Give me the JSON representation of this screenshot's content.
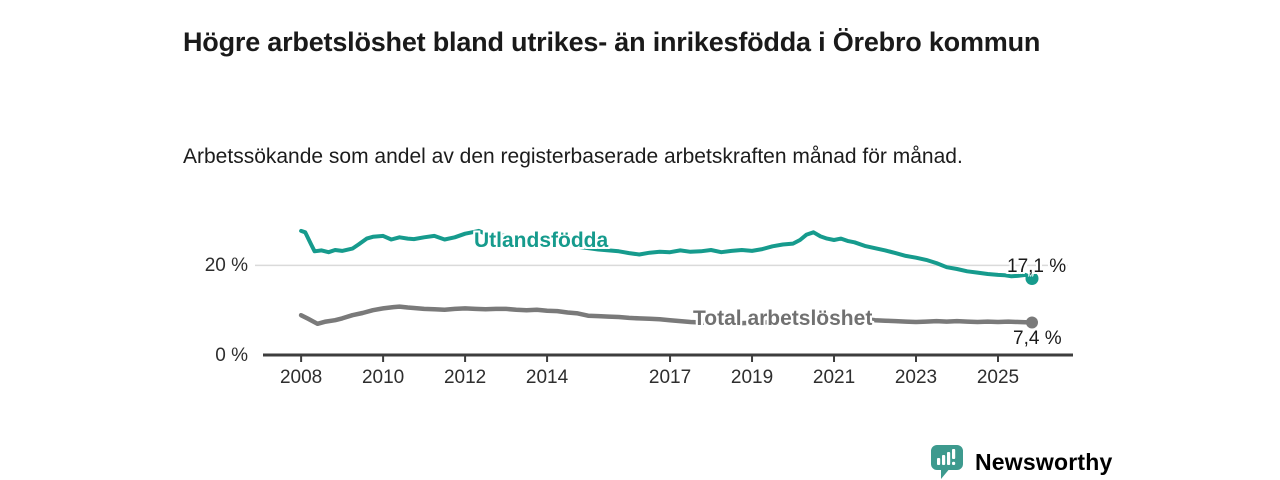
{
  "header": {
    "title": "Högre arbetslöshet bland utrikes- än inrikesfödda i Örebro kommun",
    "subtitle": "Arbetssökande som andel av den registerbaserade arbetskraften månad för månad."
  },
  "chart_data": {
    "type": "line",
    "title": "Högre arbetslöshet bland utrikes- än inrikesfödda i Örebro kommun",
    "subtitle": "Arbetssökande som andel av den registerbaserade arbetskraften månad för månad.",
    "xlabel": "",
    "ylabel": "%",
    "x_domain": [
      2007.07,
      2026.83
    ],
    "y_domain": [
      0,
      32
    ],
    "grid": "single horizontal gridline at y=20",
    "legend_position": "inline-labels-on-lines",
    "x_ticks": [
      {
        "value": 2008,
        "label": "2008"
      },
      {
        "value": 2010,
        "label": "2010"
      },
      {
        "value": 2012,
        "label": "2012"
      },
      {
        "value": 2014,
        "label": "2014"
      },
      {
        "value": 2017,
        "label": "2017"
      },
      {
        "value": 2019,
        "label": "2019"
      },
      {
        "value": 2021,
        "label": "2021"
      },
      {
        "value": 2023,
        "label": "2023"
      },
      {
        "value": 2025,
        "label": "2025"
      }
    ],
    "y_ticks": [
      {
        "value": 0,
        "label": "0 %"
      },
      {
        "value": 20,
        "label": "20 %"
      }
    ],
    "series": [
      {
        "name": "Utlandsfödda",
        "color": "#169b8d",
        "end_label": "17,1 %",
        "last_value": 17.1,
        "line_width": 4,
        "points": [
          [
            2008.0,
            27.6
          ],
          [
            2008.1,
            27.3
          ],
          [
            2008.25,
            24.5
          ],
          [
            2008.33,
            23.1
          ],
          [
            2008.5,
            23.3
          ],
          [
            2008.67,
            22.9
          ],
          [
            2008.83,
            23.4
          ],
          [
            2009.0,
            23.2
          ],
          [
            2009.25,
            23.7
          ],
          [
            2009.4,
            24.6
          ],
          [
            2009.6,
            25.9
          ],
          [
            2009.75,
            26.3
          ],
          [
            2010.0,
            26.5
          ],
          [
            2010.2,
            25.7
          ],
          [
            2010.4,
            26.2
          ],
          [
            2010.6,
            25.9
          ],
          [
            2010.75,
            25.8
          ],
          [
            2011.0,
            26.2
          ],
          [
            2011.25,
            26.5
          ],
          [
            2011.5,
            25.7
          ],
          [
            2011.75,
            26.2
          ],
          [
            2012.0,
            27.0
          ],
          [
            2012.17,
            27.3
          ],
          [
            2012.33,
            27.6
          ],
          [
            2012.5,
            27.0
          ],
          [
            2012.75,
            26.7
          ],
          [
            2013.0,
            26.5
          ],
          [
            2013.25,
            26.2
          ],
          [
            2013.5,
            25.9
          ],
          [
            2013.75,
            25.6
          ],
          [
            2014.0,
            25.2
          ],
          [
            2014.25,
            24.9
          ],
          [
            2014.5,
            24.5
          ],
          [
            2014.75,
            24.1
          ],
          [
            2015.0,
            23.8
          ],
          [
            2015.25,
            23.5
          ],
          [
            2015.5,
            23.3
          ],
          [
            2015.75,
            23.1
          ],
          [
            2016.0,
            22.7
          ],
          [
            2016.25,
            22.4
          ],
          [
            2016.5,
            22.8
          ],
          [
            2016.75,
            23.0
          ],
          [
            2017.0,
            22.9
          ],
          [
            2017.25,
            23.3
          ],
          [
            2017.5,
            23.0
          ],
          [
            2017.75,
            23.1
          ],
          [
            2018.0,
            23.4
          ],
          [
            2018.25,
            22.9
          ],
          [
            2018.5,
            23.2
          ],
          [
            2018.75,
            23.4
          ],
          [
            2019.0,
            23.2
          ],
          [
            2019.25,
            23.6
          ],
          [
            2019.5,
            24.2
          ],
          [
            2019.75,
            24.6
          ],
          [
            2020.0,
            24.8
          ],
          [
            2020.17,
            25.6
          ],
          [
            2020.33,
            26.8
          ],
          [
            2020.5,
            27.3
          ],
          [
            2020.67,
            26.4
          ],
          [
            2020.83,
            25.9
          ],
          [
            2021.0,
            25.6
          ],
          [
            2021.17,
            25.9
          ],
          [
            2021.33,
            25.4
          ],
          [
            2021.5,
            25.1
          ],
          [
            2021.75,
            24.3
          ],
          [
            2022.0,
            23.8
          ],
          [
            2022.25,
            23.3
          ],
          [
            2022.5,
            22.7
          ],
          [
            2022.75,
            22.1
          ],
          [
            2023.0,
            21.7
          ],
          [
            2023.25,
            21.2
          ],
          [
            2023.5,
            20.5
          ],
          [
            2023.75,
            19.6
          ],
          [
            2024.0,
            19.2
          ],
          [
            2024.25,
            18.7
          ],
          [
            2024.5,
            18.4
          ],
          [
            2024.75,
            18.1
          ],
          [
            2025.0,
            17.9
          ],
          [
            2025.17,
            17.8
          ],
          [
            2025.33,
            17.6
          ],
          [
            2025.5,
            17.7
          ],
          [
            2025.67,
            17.9
          ],
          [
            2025.83,
            17.1
          ]
        ]
      },
      {
        "name": "Total arbetslöshet",
        "color": "#7a7a7a",
        "end_label": "7,4 %",
        "last_value": 7.4,
        "line_width": 4.5,
        "points": [
          [
            2008.0,
            9.0
          ],
          [
            2008.17,
            8.2
          ],
          [
            2008.4,
            7.1
          ],
          [
            2008.6,
            7.6
          ],
          [
            2008.83,
            7.9
          ],
          [
            2009.0,
            8.3
          ],
          [
            2009.25,
            9.0
          ],
          [
            2009.5,
            9.5
          ],
          [
            2009.75,
            10.1
          ],
          [
            2010.0,
            10.5
          ],
          [
            2010.25,
            10.8
          ],
          [
            2010.4,
            10.9
          ],
          [
            2010.6,
            10.7
          ],
          [
            2010.75,
            10.6
          ],
          [
            2011.0,
            10.4
          ],
          [
            2011.25,
            10.3
          ],
          [
            2011.5,
            10.2
          ],
          [
            2011.75,
            10.4
          ],
          [
            2012.0,
            10.5
          ],
          [
            2012.25,
            10.4
          ],
          [
            2012.5,
            10.3
          ],
          [
            2012.75,
            10.4
          ],
          [
            2013.0,
            10.4
          ],
          [
            2013.25,
            10.2
          ],
          [
            2013.5,
            10.1
          ],
          [
            2013.75,
            10.2
          ],
          [
            2014.0,
            10.0
          ],
          [
            2014.25,
            9.9
          ],
          [
            2014.5,
            9.6
          ],
          [
            2014.75,
            9.4
          ],
          [
            2015.0,
            8.9
          ],
          [
            2015.25,
            8.8
          ],
          [
            2015.5,
            8.7
          ],
          [
            2015.75,
            8.6
          ],
          [
            2016.0,
            8.4
          ],
          [
            2016.25,
            8.3
          ],
          [
            2016.5,
            8.2
          ],
          [
            2016.75,
            8.1
          ],
          [
            2017.0,
            7.9
          ],
          [
            2017.25,
            7.7
          ],
          [
            2017.5,
            7.5
          ],
          [
            2017.75,
            7.4
          ],
          [
            2018.0,
            7.3
          ],
          [
            2018.5,
            7.2
          ],
          [
            2019.0,
            7.3
          ],
          [
            2019.5,
            7.5
          ],
          [
            2020.0,
            8.0
          ],
          [
            2020.33,
            9.0
          ],
          [
            2020.67,
            9.2
          ],
          [
            2021.0,
            8.9
          ],
          [
            2021.5,
            8.4
          ],
          [
            2022.0,
            7.9
          ],
          [
            2022.25,
            7.8
          ],
          [
            2022.5,
            7.7
          ],
          [
            2022.75,
            7.6
          ],
          [
            2023.0,
            7.5
          ],
          [
            2023.25,
            7.6
          ],
          [
            2023.5,
            7.7
          ],
          [
            2023.75,
            7.6
          ],
          [
            2024.0,
            7.7
          ],
          [
            2024.25,
            7.6
          ],
          [
            2024.5,
            7.5
          ],
          [
            2024.75,
            7.6
          ],
          [
            2025.0,
            7.5
          ],
          [
            2025.25,
            7.6
          ],
          [
            2025.5,
            7.5
          ],
          [
            2025.83,
            7.4
          ]
        ]
      }
    ]
  },
  "footer": {
    "brand": "Newsworthy",
    "logo_icon": "bar-chart-speech-bubble"
  },
  "colors": {
    "accent": "#169b8d",
    "gray_series": "#7a7a7a",
    "gray_label": "#717171",
    "axis": "#3d3d3d",
    "gridline": "#dadada",
    "text": "#1a1a1a",
    "brand_teal": "#3d9a8e"
  }
}
